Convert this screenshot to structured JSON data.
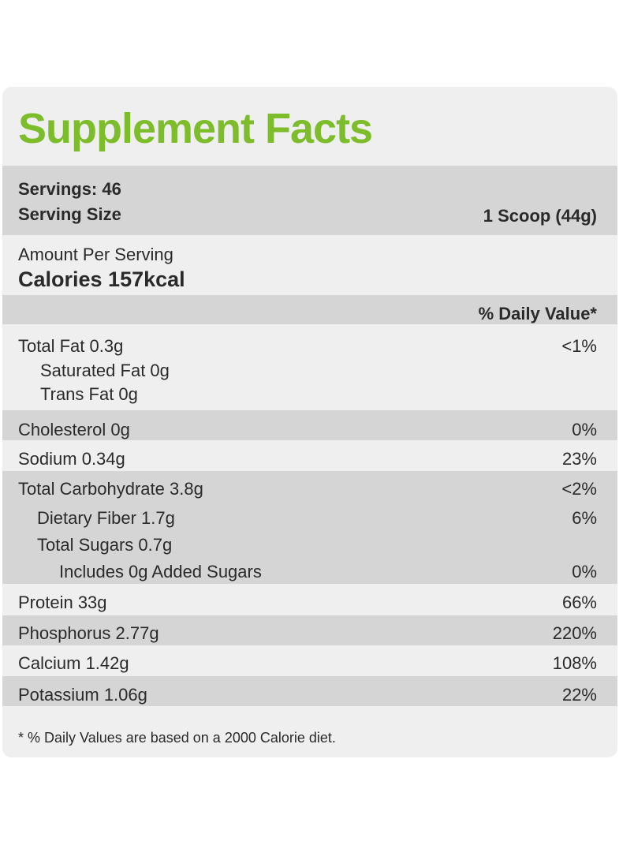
{
  "title": "Supplement Facts",
  "servings": "Servings: 46",
  "serving_size_label": "Serving Size",
  "serving_size_value": "1 Scoop  (44g)",
  "amount_per_serving": "Amount Per Serving",
  "calories": "Calories  157kcal",
  "daily_value_header": "% Daily Value*",
  "nutrients": {
    "total_fat": {
      "label": "Total Fat 0.3g",
      "dv": "<1%"
    },
    "saturated_fat": {
      "label": "Saturated Fat 0g"
    },
    "trans_fat": {
      "label": "Trans Fat 0g"
    },
    "cholesterol": {
      "label": "Cholesterol 0g",
      "dv": "0%"
    },
    "sodium": {
      "label": "Sodium 0.34g",
      "dv": "23%"
    },
    "total_carbohydrate": {
      "label": "Total Carbohydrate 3.8g",
      "dv": "<2%"
    },
    "dietary_fiber": {
      "label": "Dietary Fiber 1.7g",
      "dv": "6%"
    },
    "total_sugars": {
      "label": "Total Sugars 0.7g"
    },
    "added_sugars": {
      "label": "Includes 0g Added Sugars",
      "dv": "0%"
    },
    "protein": {
      "label": "Protein 33g",
      "dv": "66%"
    },
    "phosphorus": {
      "label": "Phosphorus 2.77g",
      "dv": "220%"
    },
    "calcium": {
      "label": "Calcium 1.42g",
      "dv": "108%"
    },
    "potassium": {
      "label": "Potassium 1.06g",
      "dv": "22%"
    }
  },
  "footnote": "*  % Daily Values are based on a 2000 Calorie diet.",
  "colors": {
    "title_green": "#7dbd2b",
    "panel_bg": "#efefef",
    "band_dark": "#d5d5d5"
  }
}
